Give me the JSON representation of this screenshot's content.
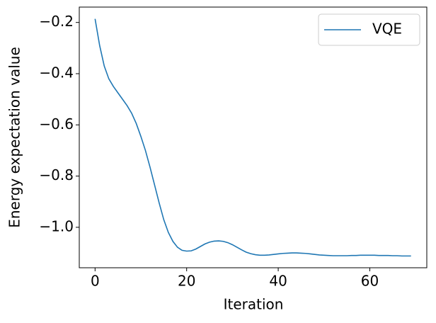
{
  "chart_data": {
    "type": "line",
    "xlabel": "Iteration",
    "ylabel": "Energy expectation value",
    "x": [
      0,
      1,
      2,
      3,
      4,
      5,
      6,
      7,
      8,
      9,
      10,
      11,
      12,
      13,
      14,
      15,
      16,
      17,
      18,
      19,
      20,
      21,
      22,
      23,
      24,
      25,
      26,
      27,
      28,
      29,
      30,
      31,
      32,
      33,
      34,
      35,
      36,
      37,
      38,
      39,
      40,
      41,
      42,
      43,
      44,
      45,
      46,
      47,
      48,
      49,
      50,
      51,
      52,
      53,
      54,
      55,
      56,
      57,
      58,
      59,
      60,
      61,
      62,
      63,
      64,
      65,
      66,
      67,
      68,
      69
    ],
    "series": [
      {
        "name": "VQE",
        "color": "#1f77b4",
        "values": [
          -0.186,
          -0.29,
          -0.37,
          -0.42,
          -0.45,
          -0.475,
          -0.5,
          -0.525,
          -0.555,
          -0.595,
          -0.645,
          -0.7,
          -0.765,
          -0.835,
          -0.905,
          -0.97,
          -1.02,
          -1.055,
          -1.078,
          -1.09,
          -1.093,
          -1.092,
          -1.085,
          -1.075,
          -1.065,
          -1.058,
          -1.054,
          -1.053,
          -1.055,
          -1.06,
          -1.068,
          -1.078,
          -1.088,
          -1.097,
          -1.103,
          -1.107,
          -1.109,
          -1.109,
          -1.108,
          -1.106,
          -1.104,
          -1.102,
          -1.101,
          -1.1,
          -1.1,
          -1.101,
          -1.102,
          -1.104,
          -1.106,
          -1.108,
          -1.109,
          -1.11,
          -1.111,
          -1.111,
          -1.111,
          -1.111,
          -1.11,
          -1.11,
          -1.109,
          -1.109,
          -1.109,
          -1.109,
          -1.11,
          -1.11,
          -1.11,
          -1.111,
          -1.111,
          -1.112,
          -1.112,
          -1.112
        ]
      }
    ],
    "xlim": [
      -3.45,
      72.45
    ],
    "xticks": [
      0,
      20,
      40,
      60
    ],
    "ylim": [
      -1.158,
      -0.14
    ],
    "yticks": [
      {
        "value": -1.0,
        "label": "−1.0"
      },
      {
        "value": -0.8,
        "label": "−0.8"
      },
      {
        "value": -0.6,
        "label": "−0.6"
      },
      {
        "value": -0.4,
        "label": "−0.4"
      },
      {
        "value": -0.2,
        "label": "−0.2"
      }
    ],
    "legend": "upper right",
    "grid": false
  }
}
